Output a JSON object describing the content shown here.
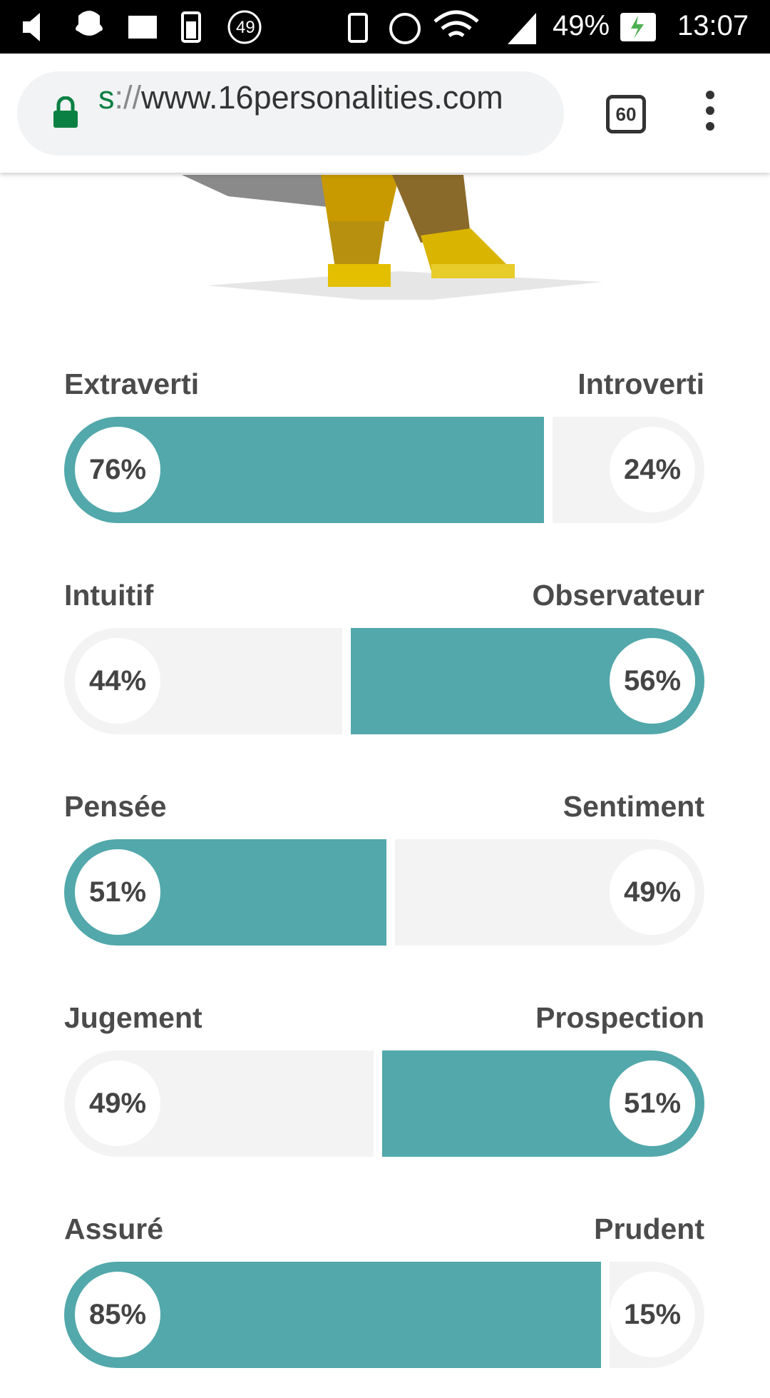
{
  "status_bar": {
    "notification_count": "49",
    "battery": "49%",
    "time": "13:07"
  },
  "browser": {
    "url_scheme": "s",
    "url_separator": "://",
    "url_host": "www.16personalities.com",
    "tab_count": "60"
  },
  "traits": [
    {
      "left_label": "Extraverti",
      "right_label": "Introverti",
      "left_value": 76,
      "right_value": 24,
      "left_text": "76%",
      "right_text": "24%"
    },
    {
      "left_label": "Intuitif",
      "right_label": "Observateur",
      "left_value": 44,
      "right_value": 56,
      "left_text": "44%",
      "right_text": "56%"
    },
    {
      "left_label": "Pensée",
      "right_label": "Sentiment",
      "left_value": 51,
      "right_value": 49,
      "left_text": "51%",
      "right_text": "49%"
    },
    {
      "left_label": "Jugement",
      "right_label": "Prospection",
      "left_value": 49,
      "right_value": 51,
      "left_text": "49%",
      "right_text": "51%"
    },
    {
      "left_label": "Assuré",
      "right_label": "Prudent",
      "left_value": 85,
      "right_value": 15,
      "left_text": "85%",
      "right_text": "15%"
    }
  ]
}
